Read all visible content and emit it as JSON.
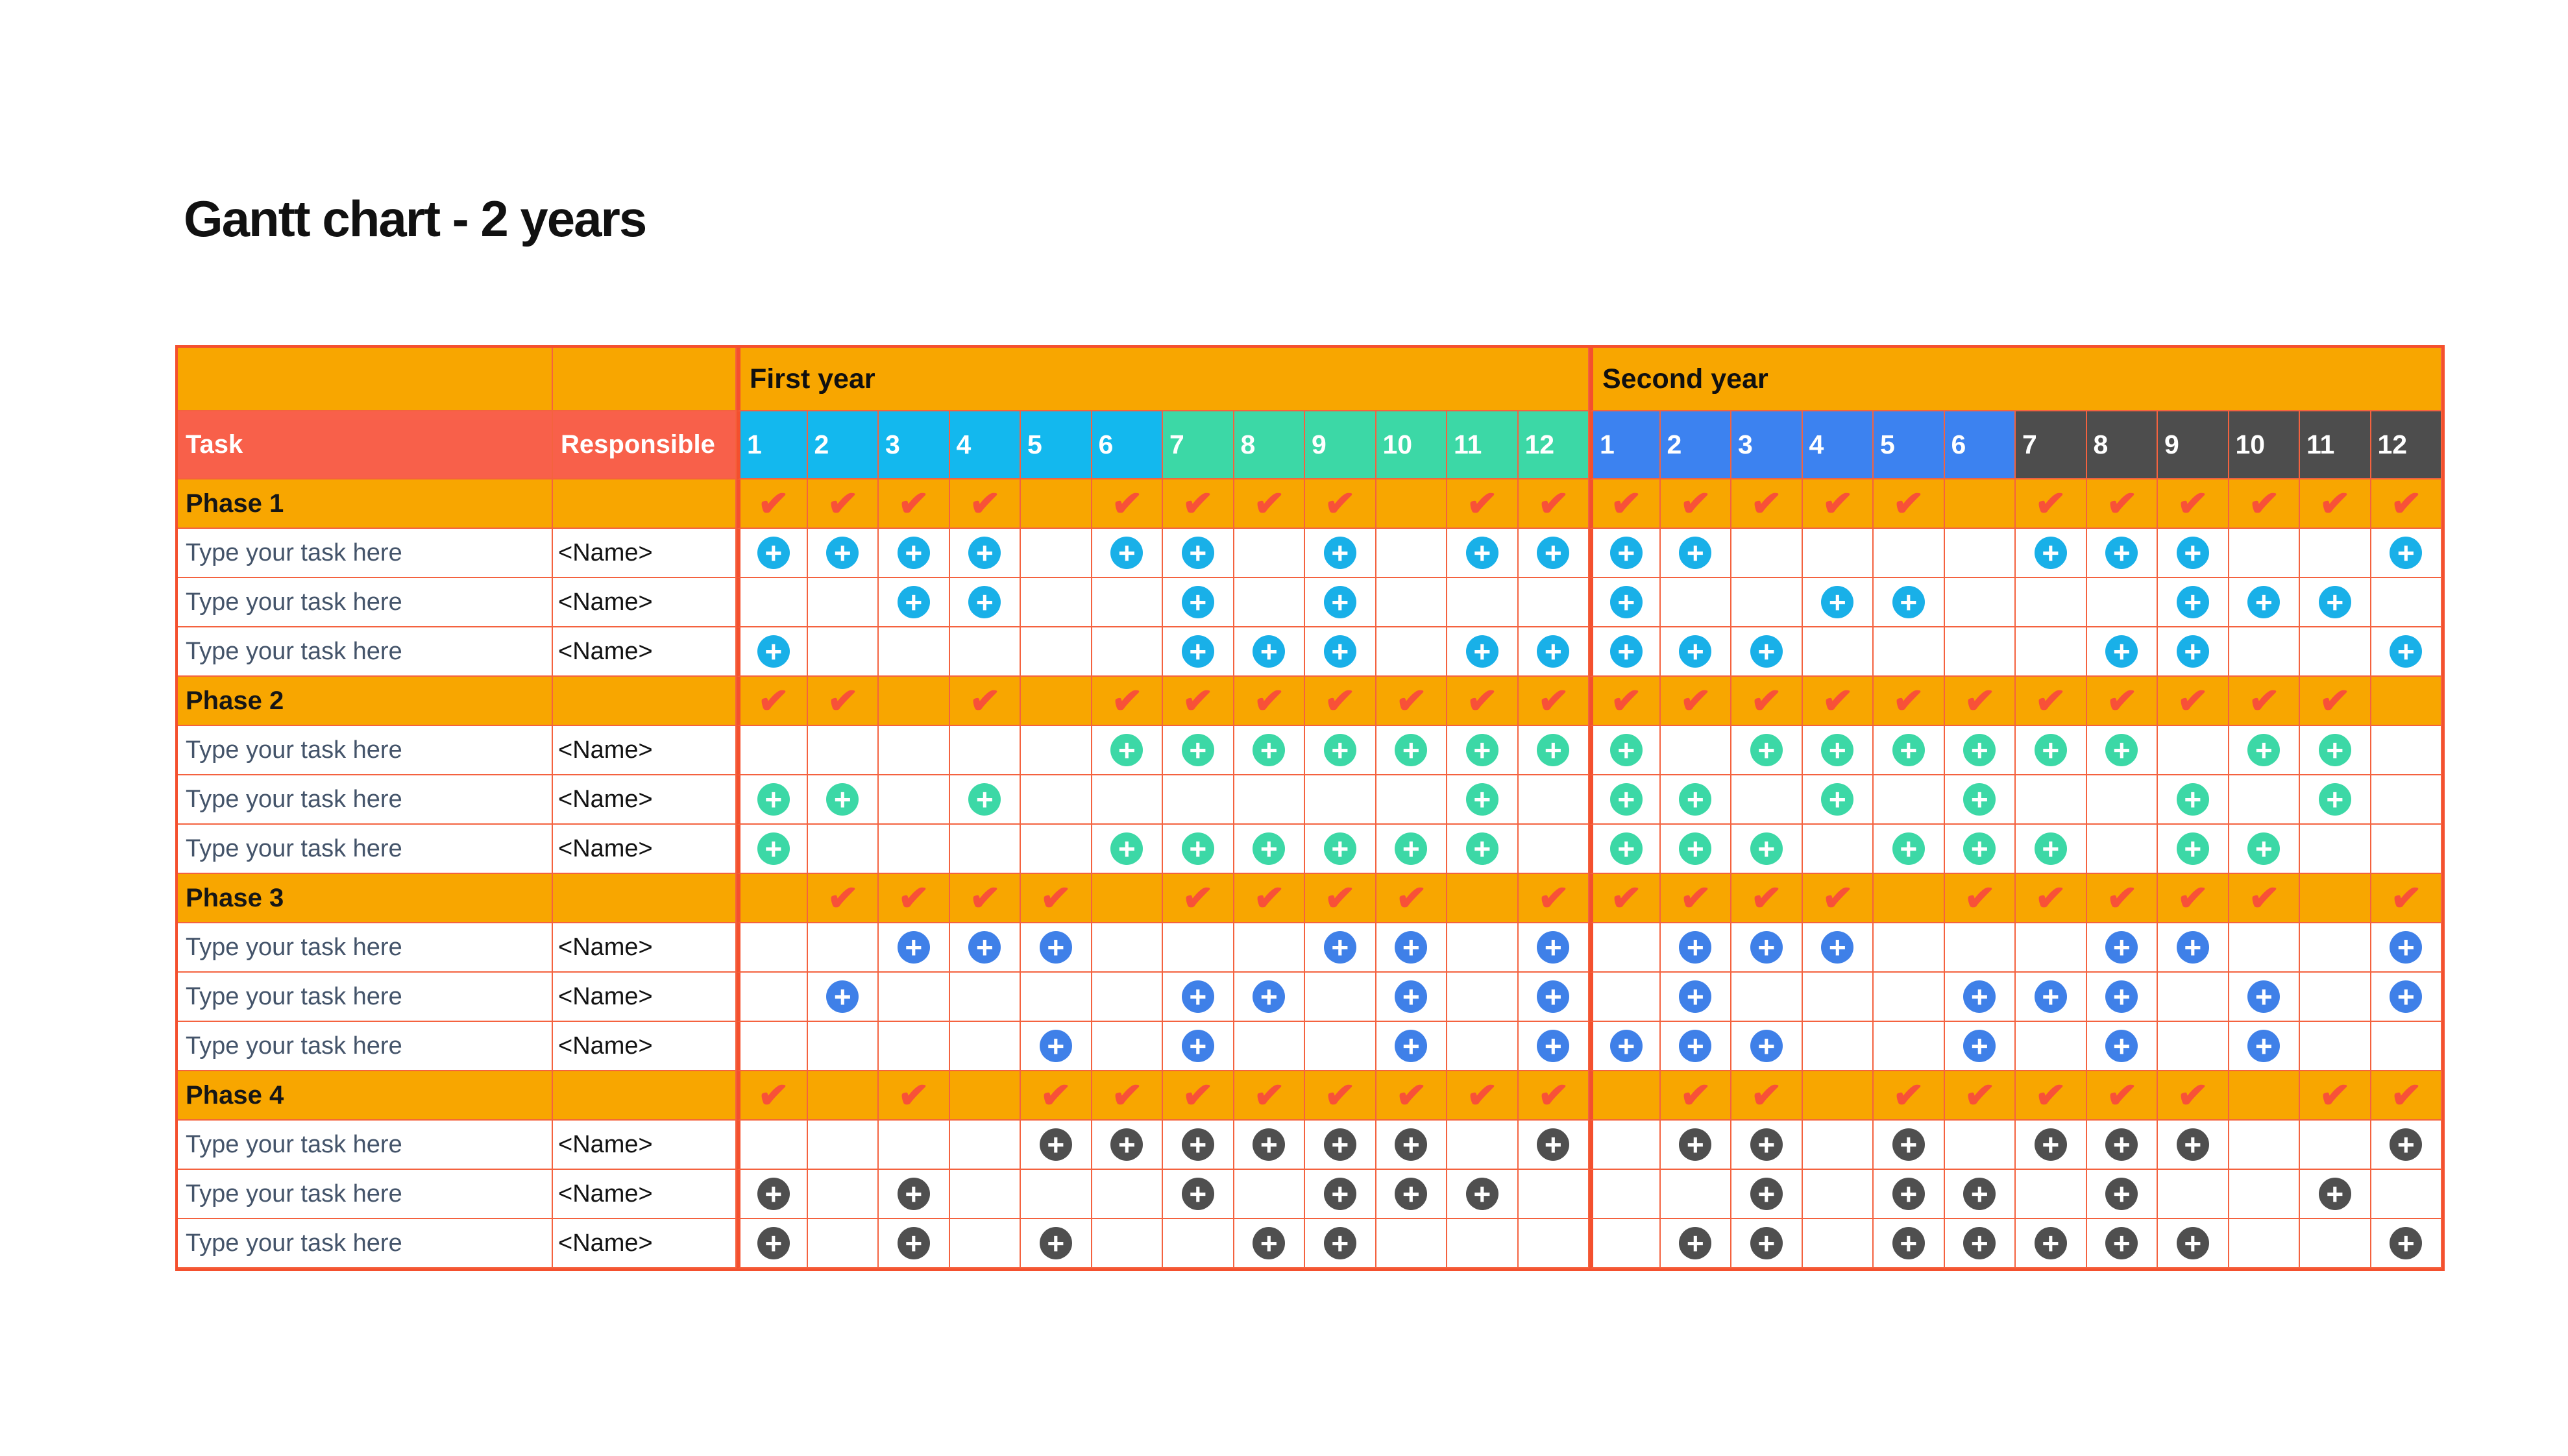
{
  "title": "Gantt chart - 2 years",
  "chart_data": {
    "type": "table",
    "subtype": "gantt",
    "year_headers": {
      "first": "First year",
      "second": "Second year"
    },
    "columns": {
      "task_header": "Task",
      "responsible_header": "Responsible"
    },
    "month_numbers": [
      "1",
      "2",
      "3",
      "4",
      "5",
      "6",
      "7",
      "8",
      "9",
      "10",
      "11",
      "12"
    ],
    "legend_note": "marks: 24 columns = first year months 1-12 then second year months 1-12; 1 = checkmark (phase rows) or plus icon (task rows)",
    "rows": [
      {
        "type": "phase",
        "label": "Phase 1",
        "responsible": "",
        "group": 1,
        "marks": [
          1,
          1,
          1,
          1,
          0,
          1,
          1,
          1,
          1,
          0,
          1,
          1,
          1,
          1,
          1,
          1,
          1,
          0,
          1,
          1,
          1,
          1,
          1,
          1
        ]
      },
      {
        "type": "task",
        "label": "Type your task here",
        "responsible": "<Name>",
        "group": 1,
        "marks": [
          1,
          1,
          1,
          1,
          0,
          1,
          1,
          0,
          1,
          0,
          1,
          1,
          1,
          1,
          0,
          0,
          0,
          0,
          1,
          1,
          1,
          0,
          0,
          1
        ]
      },
      {
        "type": "task",
        "label": "Type your task here",
        "responsible": "<Name>",
        "group": 1,
        "marks": [
          0,
          0,
          1,
          1,
          0,
          0,
          1,
          0,
          1,
          0,
          0,
          0,
          1,
          0,
          0,
          1,
          1,
          0,
          0,
          0,
          1,
          1,
          1,
          0
        ]
      },
      {
        "type": "task",
        "label": "Type your task here",
        "responsible": "<Name>",
        "group": 1,
        "marks": [
          1,
          0,
          0,
          0,
          0,
          0,
          1,
          1,
          1,
          0,
          1,
          1,
          1,
          1,
          1,
          0,
          0,
          0,
          0,
          1,
          1,
          0,
          0,
          1
        ]
      },
      {
        "type": "phase",
        "label": "Phase 2",
        "responsible": "",
        "group": 2,
        "marks": [
          1,
          1,
          0,
          1,
          0,
          1,
          1,
          1,
          1,
          1,
          1,
          1,
          1,
          1,
          1,
          1,
          1,
          1,
          1,
          1,
          1,
          1,
          1,
          0
        ]
      },
      {
        "type": "task",
        "label": "Type your task here",
        "responsible": "<Name>",
        "group": 2,
        "marks": [
          0,
          0,
          0,
          0,
          0,
          1,
          1,
          1,
          1,
          1,
          1,
          1,
          1,
          0,
          1,
          1,
          1,
          1,
          1,
          1,
          0,
          1,
          1,
          0
        ]
      },
      {
        "type": "task",
        "label": "Type your task here",
        "responsible": "<Name>",
        "group": 2,
        "marks": [
          1,
          1,
          0,
          1,
          0,
          0,
          0,
          0,
          0,
          0,
          1,
          0,
          1,
          1,
          0,
          1,
          0,
          1,
          0,
          0,
          1,
          0,
          1,
          0
        ]
      },
      {
        "type": "task",
        "label": "Type your task here",
        "responsible": "<Name>",
        "group": 2,
        "marks": [
          1,
          0,
          0,
          0,
          0,
          1,
          1,
          1,
          1,
          1,
          1,
          0,
          1,
          1,
          1,
          0,
          1,
          1,
          1,
          0,
          1,
          1,
          0,
          0
        ]
      },
      {
        "type": "phase",
        "label": "Phase 3",
        "responsible": "",
        "group": 3,
        "marks": [
          0,
          1,
          1,
          1,
          1,
          0,
          1,
          1,
          1,
          1,
          0,
          1,
          1,
          1,
          1,
          1,
          0,
          1,
          1,
          1,
          1,
          1,
          0,
          1
        ]
      },
      {
        "type": "task",
        "label": "Type your task here",
        "responsible": "<Name>",
        "group": 3,
        "marks": [
          0,
          0,
          1,
          1,
          1,
          0,
          0,
          0,
          1,
          1,
          0,
          1,
          0,
          1,
          1,
          1,
          0,
          0,
          0,
          1,
          1,
          0,
          0,
          1
        ]
      },
      {
        "type": "task",
        "label": "Type your task here",
        "responsible": "<Name>",
        "group": 3,
        "marks": [
          0,
          1,
          0,
          0,
          0,
          0,
          1,
          1,
          0,
          1,
          0,
          1,
          0,
          1,
          0,
          0,
          0,
          1,
          1,
          1,
          0,
          1,
          0,
          1
        ]
      },
      {
        "type": "task",
        "label": "Type your task here",
        "responsible": "<Name>",
        "group": 3,
        "marks": [
          0,
          0,
          0,
          0,
          1,
          0,
          1,
          0,
          0,
          1,
          0,
          1,
          1,
          1,
          1,
          0,
          0,
          1,
          0,
          1,
          0,
          1,
          0,
          0
        ]
      },
      {
        "type": "phase",
        "label": "Phase 4",
        "responsible": "",
        "group": 4,
        "marks": [
          1,
          0,
          1,
          0,
          1,
          1,
          1,
          1,
          1,
          1,
          1,
          1,
          0,
          1,
          1,
          0,
          1,
          1,
          1,
          1,
          1,
          0,
          1,
          1
        ]
      },
      {
        "type": "task",
        "label": "Type your task here",
        "responsible": "<Name>",
        "group": 4,
        "marks": [
          0,
          0,
          0,
          0,
          1,
          1,
          1,
          1,
          1,
          1,
          0,
          1,
          0,
          1,
          1,
          0,
          1,
          0,
          1,
          1,
          1,
          0,
          0,
          1
        ]
      },
      {
        "type": "task",
        "label": "Type your task here",
        "responsible": "<Name>",
        "group": 4,
        "marks": [
          1,
          0,
          1,
          0,
          0,
          0,
          1,
          0,
          1,
          1,
          1,
          0,
          0,
          0,
          1,
          0,
          1,
          1,
          0,
          1,
          0,
          0,
          1,
          0
        ]
      },
      {
        "type": "task",
        "label": "Type your task here",
        "responsible": "<Name>",
        "group": 4,
        "marks": [
          1,
          0,
          1,
          0,
          1,
          0,
          0,
          1,
          1,
          0,
          0,
          0,
          0,
          1,
          1,
          0,
          1,
          1,
          1,
          1,
          1,
          0,
          0,
          1
        ]
      }
    ]
  },
  "colors": {
    "orange": "#f8a600",
    "header_red": "#f8604a",
    "border_thin": "#f4623f",
    "border_thick": "#f4502e",
    "check": "#f85138",
    "month_cyan": "#13b8ee",
    "month_green": "#3cd8a6",
    "month_blue": "#3c82f0",
    "month_dark": "#4d4d4d",
    "icon_cyan": "#19b0e8",
    "icon_green": "#3cd8a6",
    "icon_blue": "#3f80e8",
    "icon_dark": "#4f4f4f",
    "task_text": "#44546a"
  }
}
